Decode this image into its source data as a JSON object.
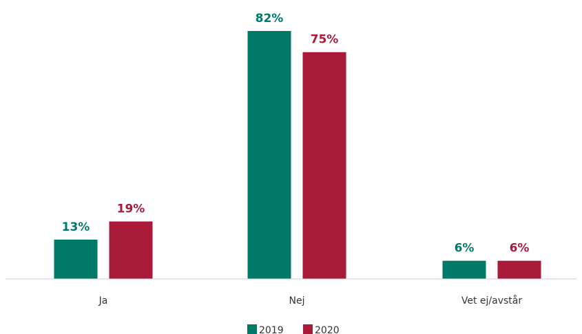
{
  "chart_data": {
    "type": "bar",
    "categories": [
      "Ja",
      "Nej",
      "Vet ej/avstår"
    ],
    "series": [
      {
        "name": "2019",
        "values": [
          13,
          82,
          6
        ],
        "labels": [
          "13%",
          "82%",
          "6%"
        ],
        "color": "#007A68"
      },
      {
        "name": "2020",
        "values": [
          19,
          75,
          6
        ],
        "labels": [
          "19%",
          "75%",
          "6%"
        ],
        "color": "#A8193A"
      }
    ],
    "ylim": [
      0,
      82
    ],
    "grid": false,
    "legend_position": "bottom-center",
    "axis_color": "#cccccc"
  }
}
